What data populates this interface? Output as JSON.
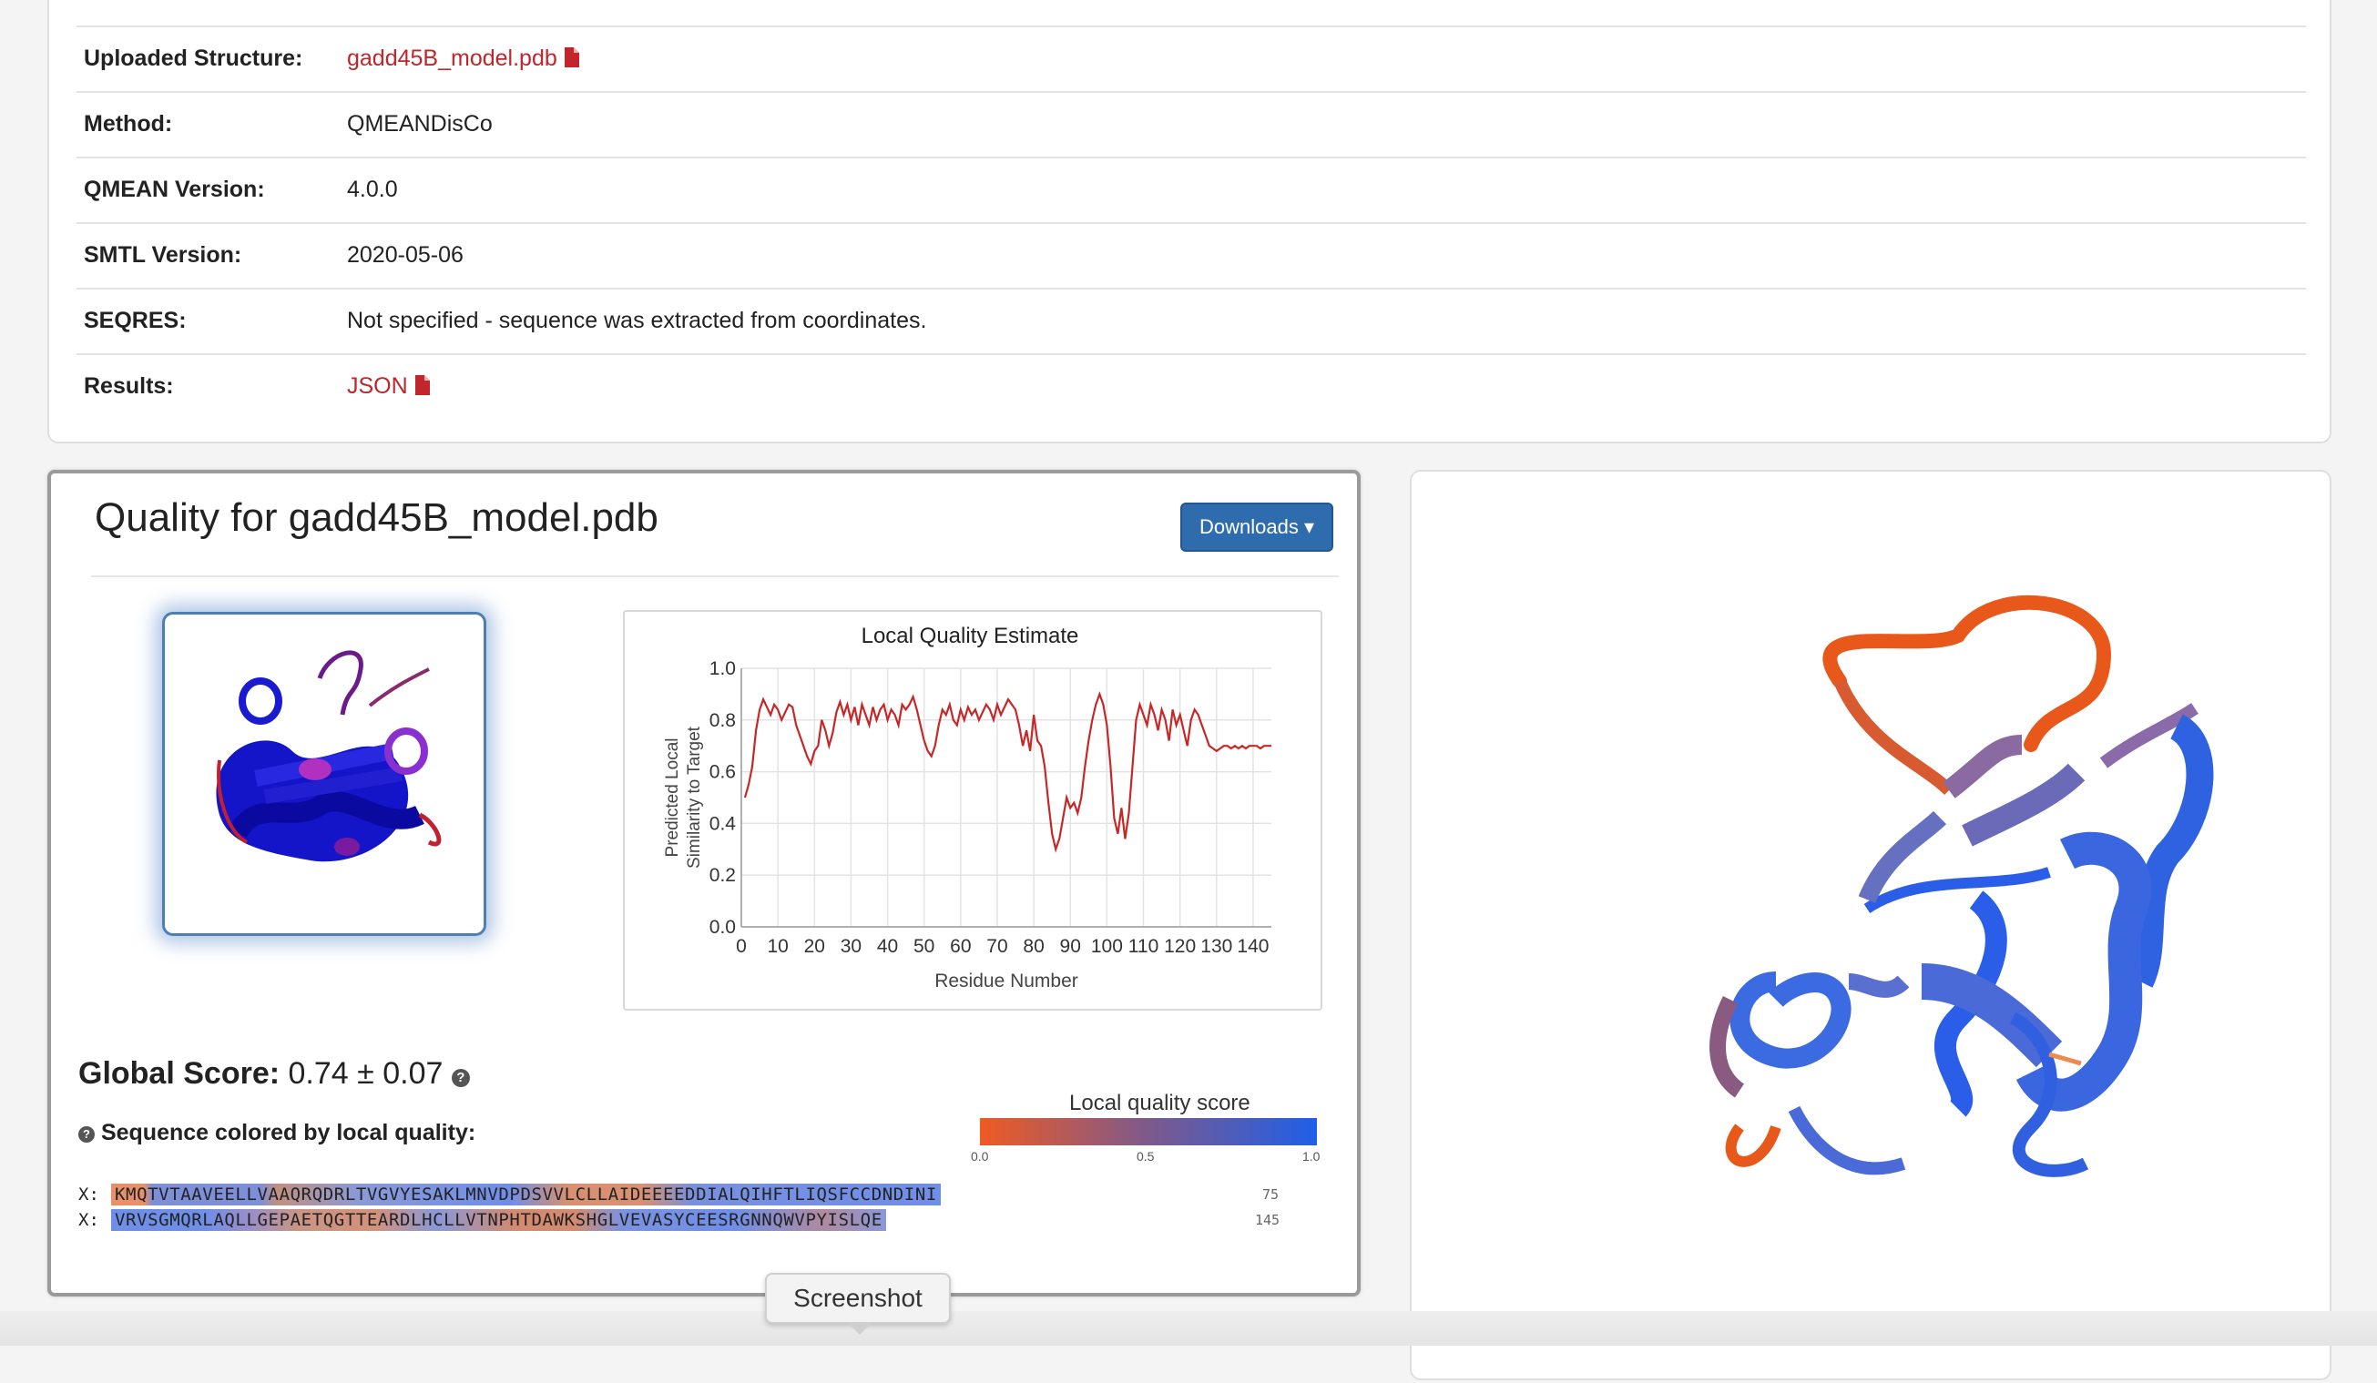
{
  "info": {
    "rows": [
      {
        "label": "Uploaded Structure:",
        "value": "gadd45B_model.pdb",
        "link": true,
        "icon": "file-icon"
      },
      {
        "label": "Method:",
        "value": "QMEANDisCo"
      },
      {
        "label": "QMEAN Version:",
        "value": "4.0.0"
      },
      {
        "label": "SMTL Version:",
        "value": "2020-05-06"
      },
      {
        "label": "SEQRES:",
        "value": "Not specified - sequence was extracted from coordinates."
      },
      {
        "label": "Results:",
        "value": "JSON",
        "link": true,
        "icon": "file-icon"
      }
    ]
  },
  "quality": {
    "title": "Quality for gadd45B_model.pdb",
    "downloads_label": "Downloads ▾",
    "global_score_label": "Global Score:",
    "global_score_value": "0.74 ± 0.07",
    "seq_heading": "Sequence colored by local quality:",
    "legend_title": "Local quality score",
    "legend_ticks": [
      "0.0",
      "0.5",
      "1.0"
    ],
    "sequence_lines": [
      {
        "label": "X:",
        "text": "KMQTVTAAVEELLVAAQRQDRLTVGVYESAKLMNVDPDSVVLCLLAIDEEEEDDIALQIHFTLIQSFCCDNDINI",
        "end": "75"
      },
      {
        "label": "X:",
        "text": "VRVSGMQRLAQLLGEPAETQGTTEARDLHCLLVTNPHTDAWKSHGLVEVASYCEESRGNNQWVPYISLQE",
        "end": "145"
      }
    ]
  },
  "tooltip": "Screenshot",
  "colors": {
    "link": "#c0262b",
    "button": "#2f6cad",
    "low": "#f05a23",
    "high": "#1f5fe8",
    "line": "#c62828"
  },
  "chart_data": {
    "type": "line",
    "title": "Local Quality Estimate",
    "xlabel": "Residue Number",
    "ylabel": "Predicted Local Similarity to Target",
    "xlim": [
      0,
      145
    ],
    "ylim": [
      0,
      1.0
    ],
    "xticks": [
      0,
      10,
      20,
      30,
      40,
      50,
      60,
      70,
      80,
      90,
      100,
      110,
      120,
      130,
      140
    ],
    "yticks": [
      0.0,
      0.2,
      0.4,
      0.6,
      0.8,
      1.0
    ],
    "grid": true,
    "x": [
      1,
      2,
      3,
      4,
      5,
      6,
      7,
      8,
      9,
      10,
      11,
      12,
      13,
      14,
      15,
      16,
      17,
      18,
      19,
      20,
      21,
      22,
      23,
      24,
      25,
      26,
      27,
      28,
      29,
      30,
      31,
      32,
      33,
      34,
      35,
      36,
      37,
      38,
      39,
      40,
      41,
      42,
      43,
      44,
      45,
      46,
      47,
      48,
      49,
      50,
      51,
      52,
      53,
      54,
      55,
      56,
      57,
      58,
      59,
      60,
      61,
      62,
      63,
      64,
      65,
      66,
      67,
      68,
      69,
      70,
      71,
      72,
      73,
      74,
      75,
      76,
      77,
      78,
      79,
      80,
      81,
      82,
      83,
      84,
      85,
      86,
      87,
      88,
      89,
      90,
      91,
      92,
      93,
      94,
      95,
      96,
      97,
      98,
      99,
      100,
      101,
      102,
      103,
      104,
      105,
      106,
      107,
      108,
      109,
      110,
      111,
      112,
      113,
      114,
      115,
      116,
      117,
      118,
      119,
      120,
      121,
      122,
      123,
      124,
      125,
      126,
      127,
      128,
      129,
      130,
      131,
      132,
      133,
      134,
      135,
      136,
      137,
      138,
      139,
      140,
      141,
      142,
      143,
      144,
      145
    ],
    "y": [
      0.5,
      0.55,
      0.62,
      0.76,
      0.84,
      0.88,
      0.85,
      0.82,
      0.86,
      0.84,
      0.8,
      0.83,
      0.86,
      0.85,
      0.78,
      0.74,
      0.7,
      0.66,
      0.63,
      0.68,
      0.7,
      0.8,
      0.76,
      0.7,
      0.75,
      0.83,
      0.87,
      0.82,
      0.86,
      0.8,
      0.85,
      0.78,
      0.86,
      0.82,
      0.78,
      0.85,
      0.8,
      0.84,
      0.86,
      0.8,
      0.84,
      0.82,
      0.78,
      0.86,
      0.84,
      0.86,
      0.89,
      0.84,
      0.78,
      0.72,
      0.68,
      0.66,
      0.7,
      0.78,
      0.84,
      0.82,
      0.86,
      0.8,
      0.78,
      0.84,
      0.8,
      0.85,
      0.82,
      0.84,
      0.8,
      0.83,
      0.86,
      0.84,
      0.8,
      0.86,
      0.82,
      0.85,
      0.88,
      0.86,
      0.84,
      0.78,
      0.7,
      0.76,
      0.68,
      0.82,
      0.72,
      0.7,
      0.62,
      0.48,
      0.36,
      0.3,
      0.34,
      0.42,
      0.5,
      0.46,
      0.48,
      0.44,
      0.5,
      0.62,
      0.72,
      0.8,
      0.86,
      0.9,
      0.86,
      0.78,
      0.62,
      0.42,
      0.36,
      0.46,
      0.34,
      0.44,
      0.62,
      0.8,
      0.86,
      0.82,
      0.78,
      0.86,
      0.82,
      0.76,
      0.84,
      0.8,
      0.72,
      0.84,
      0.78,
      0.82,
      0.76,
      0.7,
      0.8,
      0.84,
      0.82,
      0.78,
      0.74,
      0.7,
      0.69,
      0.68,
      0.69,
      0.7,
      0.7,
      0.69,
      0.7,
      0.69,
      0.7,
      0.69,
      0.7,
      0.7,
      0.7,
      0.69,
      0.7,
      0.7,
      0.7
    ]
  }
}
